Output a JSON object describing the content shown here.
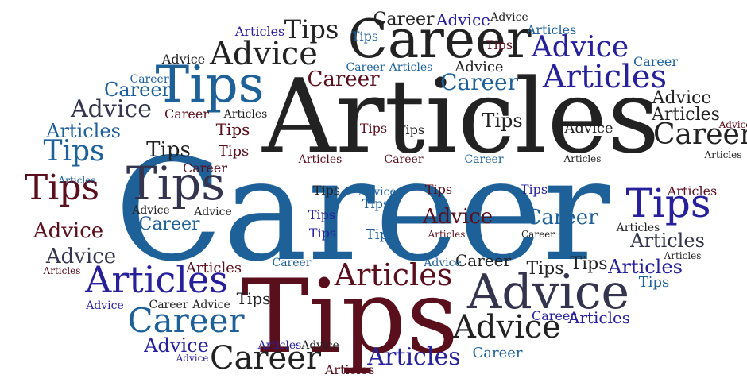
{
  "words": {
    "career": "Career",
    "articles": "Articles",
    "tips": "Tips",
    "advice": "Advice"
  },
  "colors": {
    "blue": "#1e6098",
    "navy": "#26219a",
    "dark": "#222222",
    "maroon": "#5a0f1c",
    "slate": "#34344f"
  }
}
